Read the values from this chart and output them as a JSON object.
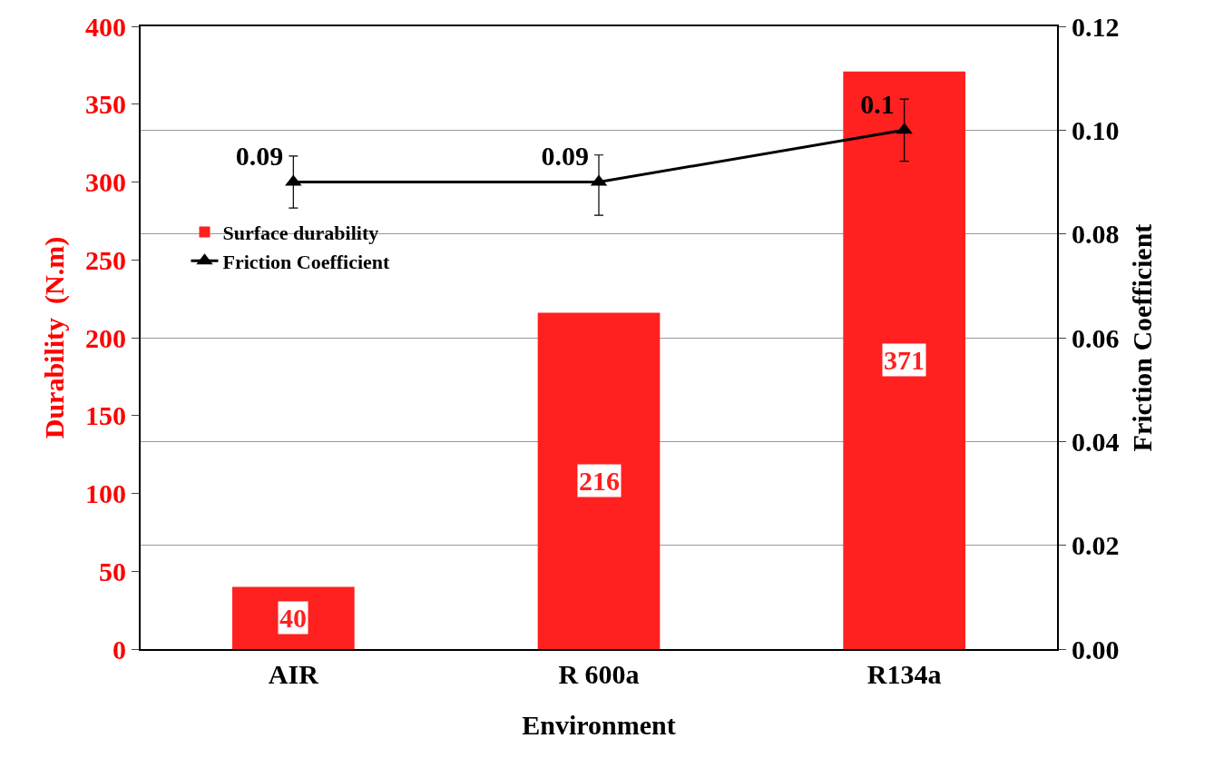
{
  "chart_data": {
    "type": "bar",
    "xlabel": "Environment",
    "ylabel": "Durability  (N.m)",
    "y2label": "Friction Coefficient",
    "categories": [
      "AIR",
      "R 600a",
      "R134a"
    ],
    "series": [
      {
        "name": "Surface durability",
        "color": "#ff2020",
        "values": [
          40,
          216,
          371
        ]
      },
      {
        "name": "Friction Coefficient",
        "type": "line",
        "axis": "y2",
        "color": "#000000",
        "values": [
          0.09,
          0.09,
          0.1
        ],
        "errors": [
          0.005,
          [
            0.0836,
            0.0952
          ],
          0.006
        ],
        "marker": "triangle",
        "line_style": "solid"
      }
    ],
    "ylim": [
      0,
      400
    ],
    "yticks": [
      0,
      50,
      100,
      150,
      200,
      250,
      300,
      350,
      400
    ],
    "y2lim": [
      0,
      0.12
    ],
    "y2ticks": [
      {
        "value": 0,
        "label": "0.00"
      },
      {
        "value": 0.02,
        "label": "0.02"
      },
      {
        "value": 0.04,
        "label": "0.04"
      },
      {
        "value": 0.06,
        "label": "0.06"
      },
      {
        "value": 0.08,
        "label": "0.08"
      },
      {
        "value": 0.1,
        "label": "0.10"
      },
      {
        "value": 0.12,
        "label": "0.12"
      }
    ],
    "grid": "y2",
    "legend": "top left",
    "data_labels": true
  }
}
